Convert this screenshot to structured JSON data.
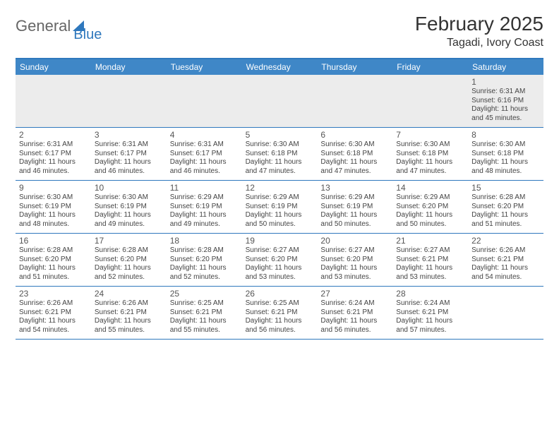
{
  "logo": {
    "text_general": "General",
    "text_blue": "Blue"
  },
  "header": {
    "month_title": "February 2025",
    "location": "Tagadi, Ivory Coast"
  },
  "colors": {
    "header_bar": "#3f87c7",
    "header_text": "#ffffff",
    "rule": "#2f78bd",
    "body_text": "#444444",
    "first_row_bg": "#ececec",
    "page_bg": "#ffffff"
  },
  "typography": {
    "month_title_fontsize": 28,
    "location_fontsize": 16,
    "dayname_fontsize": 12,
    "daynum_fontsize": 12,
    "cell_fontsize": 10
  },
  "daynames": [
    "Sunday",
    "Monday",
    "Tuesday",
    "Wednesday",
    "Thursday",
    "Friday",
    "Saturday"
  ],
  "weeks": [
    [
      {
        "num": "",
        "text": ""
      },
      {
        "num": "",
        "text": ""
      },
      {
        "num": "",
        "text": ""
      },
      {
        "num": "",
        "text": ""
      },
      {
        "num": "",
        "text": ""
      },
      {
        "num": "",
        "text": ""
      },
      {
        "num": "1",
        "text": "Sunrise: 6:31 AM\nSunset: 6:16 PM\nDaylight: 11 hours and 45 minutes."
      }
    ],
    [
      {
        "num": "2",
        "text": "Sunrise: 6:31 AM\nSunset: 6:17 PM\nDaylight: 11 hours and 46 minutes."
      },
      {
        "num": "3",
        "text": "Sunrise: 6:31 AM\nSunset: 6:17 PM\nDaylight: 11 hours and 46 minutes."
      },
      {
        "num": "4",
        "text": "Sunrise: 6:31 AM\nSunset: 6:17 PM\nDaylight: 11 hours and 46 minutes."
      },
      {
        "num": "5",
        "text": "Sunrise: 6:30 AM\nSunset: 6:18 PM\nDaylight: 11 hours and 47 minutes."
      },
      {
        "num": "6",
        "text": "Sunrise: 6:30 AM\nSunset: 6:18 PM\nDaylight: 11 hours and 47 minutes."
      },
      {
        "num": "7",
        "text": "Sunrise: 6:30 AM\nSunset: 6:18 PM\nDaylight: 11 hours and 47 minutes."
      },
      {
        "num": "8",
        "text": "Sunrise: 6:30 AM\nSunset: 6:18 PM\nDaylight: 11 hours and 48 minutes."
      }
    ],
    [
      {
        "num": "9",
        "text": "Sunrise: 6:30 AM\nSunset: 6:19 PM\nDaylight: 11 hours and 48 minutes."
      },
      {
        "num": "10",
        "text": "Sunrise: 6:30 AM\nSunset: 6:19 PM\nDaylight: 11 hours and 49 minutes."
      },
      {
        "num": "11",
        "text": "Sunrise: 6:29 AM\nSunset: 6:19 PM\nDaylight: 11 hours and 49 minutes."
      },
      {
        "num": "12",
        "text": "Sunrise: 6:29 AM\nSunset: 6:19 PM\nDaylight: 11 hours and 50 minutes."
      },
      {
        "num": "13",
        "text": "Sunrise: 6:29 AM\nSunset: 6:19 PM\nDaylight: 11 hours and 50 minutes."
      },
      {
        "num": "14",
        "text": "Sunrise: 6:29 AM\nSunset: 6:20 PM\nDaylight: 11 hours and 50 minutes."
      },
      {
        "num": "15",
        "text": "Sunrise: 6:28 AM\nSunset: 6:20 PM\nDaylight: 11 hours and 51 minutes."
      }
    ],
    [
      {
        "num": "16",
        "text": "Sunrise: 6:28 AM\nSunset: 6:20 PM\nDaylight: 11 hours and 51 minutes."
      },
      {
        "num": "17",
        "text": "Sunrise: 6:28 AM\nSunset: 6:20 PM\nDaylight: 11 hours and 52 minutes."
      },
      {
        "num": "18",
        "text": "Sunrise: 6:28 AM\nSunset: 6:20 PM\nDaylight: 11 hours and 52 minutes."
      },
      {
        "num": "19",
        "text": "Sunrise: 6:27 AM\nSunset: 6:20 PM\nDaylight: 11 hours and 53 minutes."
      },
      {
        "num": "20",
        "text": "Sunrise: 6:27 AM\nSunset: 6:20 PM\nDaylight: 11 hours and 53 minutes."
      },
      {
        "num": "21",
        "text": "Sunrise: 6:27 AM\nSunset: 6:21 PM\nDaylight: 11 hours and 53 minutes."
      },
      {
        "num": "22",
        "text": "Sunrise: 6:26 AM\nSunset: 6:21 PM\nDaylight: 11 hours and 54 minutes."
      }
    ],
    [
      {
        "num": "23",
        "text": "Sunrise: 6:26 AM\nSunset: 6:21 PM\nDaylight: 11 hours and 54 minutes."
      },
      {
        "num": "24",
        "text": "Sunrise: 6:26 AM\nSunset: 6:21 PM\nDaylight: 11 hours and 55 minutes."
      },
      {
        "num": "25",
        "text": "Sunrise: 6:25 AM\nSunset: 6:21 PM\nDaylight: 11 hours and 55 minutes."
      },
      {
        "num": "26",
        "text": "Sunrise: 6:25 AM\nSunset: 6:21 PM\nDaylight: 11 hours and 56 minutes."
      },
      {
        "num": "27",
        "text": "Sunrise: 6:24 AM\nSunset: 6:21 PM\nDaylight: 11 hours and 56 minutes."
      },
      {
        "num": "28",
        "text": "Sunrise: 6:24 AM\nSunset: 6:21 PM\nDaylight: 11 hours and 57 minutes."
      },
      {
        "num": "",
        "text": ""
      }
    ]
  ]
}
